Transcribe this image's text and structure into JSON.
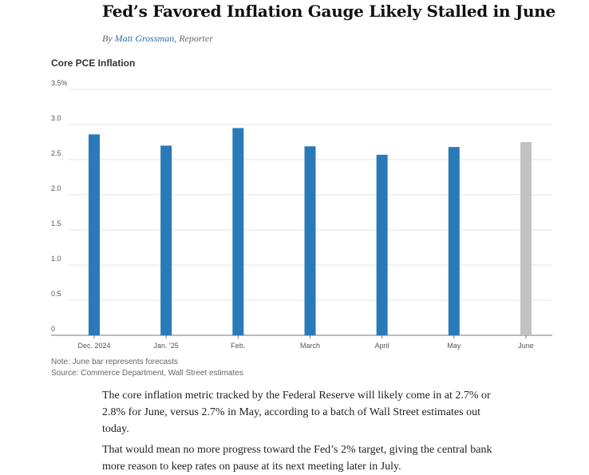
{
  "article": {
    "headline": "Fed’s Favored Inflation Gauge Likely Stalled in June",
    "byline_prefix": "By",
    "author": "Matt Grossman",
    "role": ", Reporter",
    "paragraph1": "The core inflation metric tracked by the Federal Reserve will likely come in at 2.7% or 2.8% for June, versus 2.7% in May, according to a batch of Wall Street estimates out today.",
    "paragraph2": "That would mean no more progress toward the Fed’s 2% target, giving the central bank more reason to keep rates on pause at its next meeting later in July."
  },
  "chart_data": {
    "type": "bar",
    "title": "Core PCE Inflation",
    "categories": [
      "Dec. 2024",
      "Jan. '25",
      "Feb.",
      "March",
      "April",
      "May",
      "June"
    ],
    "values": [
      2.86,
      2.7,
      2.95,
      2.69,
      2.57,
      2.68,
      2.75
    ],
    "forecast": [
      false,
      false,
      false,
      false,
      false,
      false,
      true
    ],
    "ylim": [
      0,
      3.5
    ],
    "yticks": [
      0,
      0.5,
      1.0,
      1.5,
      2.0,
      2.5,
      3.0,
      3.5
    ],
    "ytick_labels": [
      "0",
      "0.5",
      "1.0",
      "1.5",
      "2.0",
      "2.5",
      "3.0",
      "3.5%"
    ],
    "grid": true,
    "colors": {
      "actual": "#2a7ab8",
      "forecast": "#c2c2c2",
      "grid": "#e3e3e3"
    },
    "note": "Note: June bar represents forecasts",
    "source": "Source: Commerce Department, Wall Street estimates"
  }
}
